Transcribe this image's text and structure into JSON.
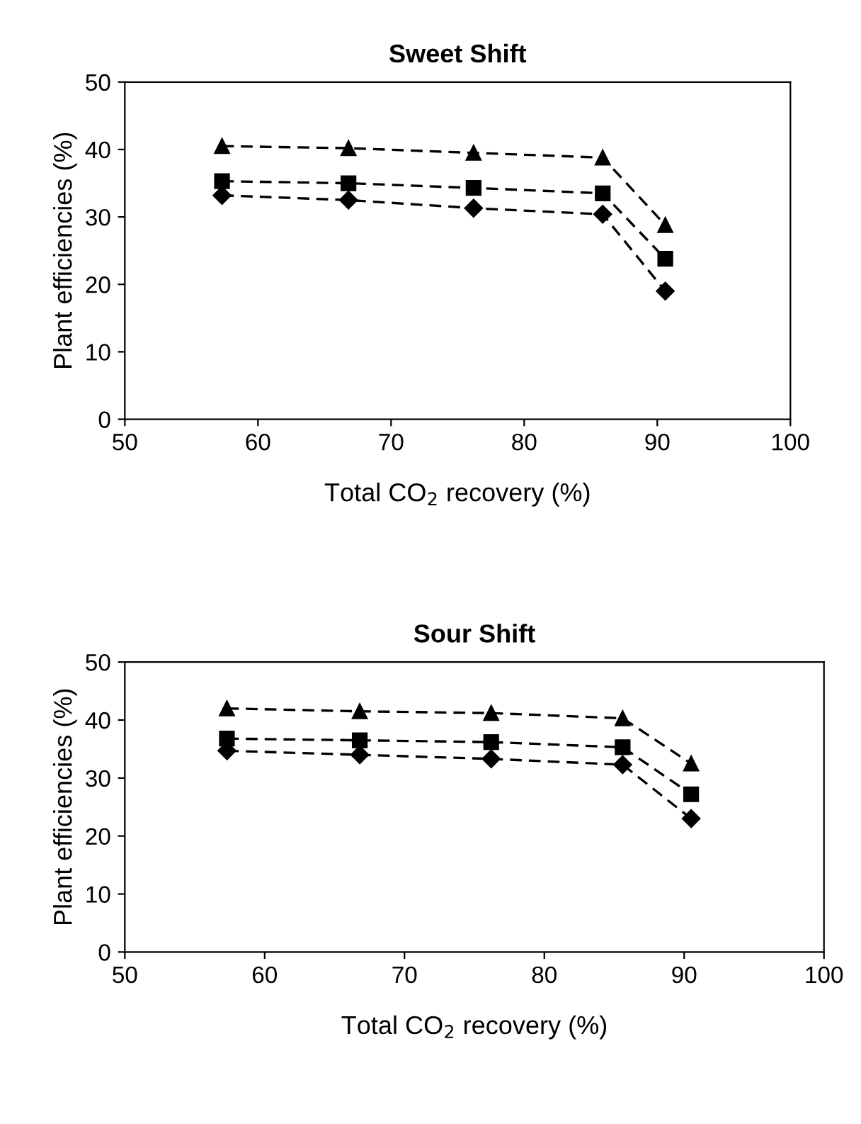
{
  "chart_data": [
    {
      "type": "line",
      "title": "Sweet Shift",
      "xlabel": "Total CO$_{2}$ recovery (%)",
      "ylabel": "Plant efficiencies (%)",
      "xlim": [
        50,
        100
      ],
      "xticks": [
        50,
        60,
        70,
        80,
        90,
        100
      ],
      "ylim": [
        0,
        50
      ],
      "yticks": [
        0,
        10,
        20,
        30,
        40,
        50
      ],
      "line_style": "dashed",
      "x": [
        57.3,
        66.8,
        76.2,
        85.9,
        90.6
      ],
      "series": [
        {
          "color": "#000000",
          "marker": "triangle",
          "values": [
            40.5,
            40.2,
            39.5,
            38.8,
            28.8
          ]
        },
        {
          "color": "#000000",
          "marker": "square",
          "values": [
            35.3,
            35.0,
            34.3,
            33.5,
            23.8
          ]
        },
        {
          "color": "#000000",
          "marker": "diamond",
          "values": [
            33.2,
            32.5,
            31.3,
            30.4,
            19.0
          ]
        }
      ]
    },
    {
      "type": "line",
      "title": "Sour Shift",
      "xlabel": "Total CO$_{2}$ recovery (%)",
      "ylabel": "Plant efficiencies (%)",
      "xlim": [
        50,
        100
      ],
      "xticks": [
        50,
        60,
        70,
        80,
        90,
        100
      ],
      "ylim": [
        0,
        50
      ],
      "yticks": [
        0,
        10,
        20,
        30,
        40,
        50
      ],
      "line_style": "dashed",
      "x": [
        57.3,
        66.8,
        76.2,
        85.6,
        90.5
      ],
      "series": [
        {
          "color": "#000000",
          "marker": "triangle",
          "values": [
            42.0,
            41.5,
            41.2,
            40.3,
            32.5
          ]
        },
        {
          "color": "#000000",
          "marker": "square",
          "values": [
            36.8,
            36.5,
            36.2,
            35.3,
            27.2
          ]
        },
        {
          "color": "#000000",
          "marker": "diamond",
          "values": [
            34.7,
            34.0,
            33.3,
            32.3,
            23.0
          ]
        }
      ]
    }
  ]
}
